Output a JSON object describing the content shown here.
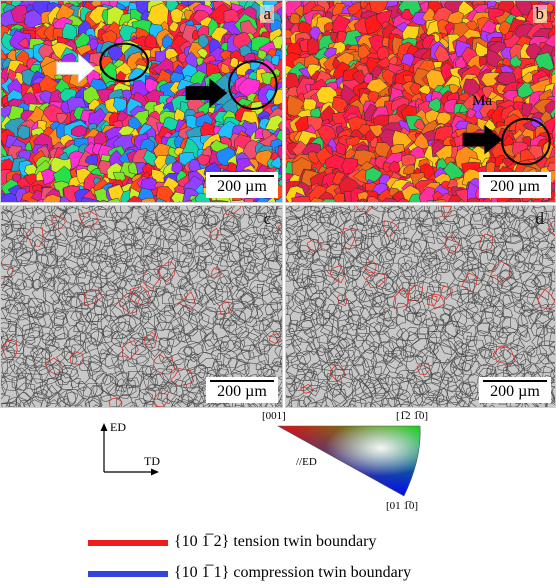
{
  "panels": {
    "a": {
      "letter": "a",
      "scale": "200 µm"
    },
    "b": {
      "letter": "b",
      "scale": "200 µm",
      "annotation": "Ma"
    },
    "c": {
      "letter": "c",
      "scale": "200 µm"
    },
    "d": {
      "letter": "d",
      "scale": "200 µm"
    }
  },
  "axes": {
    "vertical": "ED",
    "horizontal": "TD"
  },
  "ipf": {
    "corner_top_left": "[001]",
    "corner_top_right": "[1̅2 1̅0]",
    "corner_bottom": "[01 1̅0]",
    "axis_note": "//ED"
  },
  "legend": [
    {
      "text": "{10 1̅ 2} tension twin boundary",
      "color": "#ee1c1c"
    },
    {
      "text": "{10 1̅ 1} compression twin boundary",
      "color": "#3344dd"
    }
  ]
}
